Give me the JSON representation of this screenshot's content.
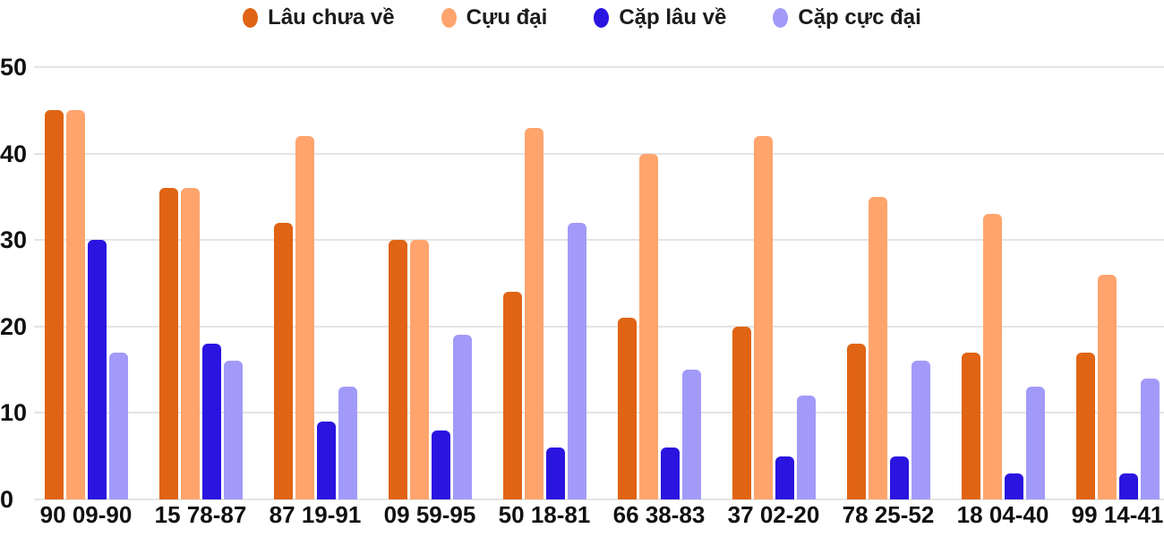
{
  "chart_data": {
    "type": "bar",
    "title": "",
    "xlabel": "",
    "ylabel": "",
    "ylim": [
      0,
      50
    ],
    "yticks": [
      0,
      10,
      20,
      30,
      40,
      50
    ],
    "grid": true,
    "legend_position": "top",
    "background": "#ffffff",
    "grid_color": "#e4e4e4",
    "text_color": "#111111",
    "categories": [
      "90 09-90",
      "15 78-87",
      "87 19-91",
      "09 59-95",
      "50 18-81",
      "66 38-83",
      "37 02-20",
      "78 25-52",
      "18 04-40",
      "99 14-41"
    ],
    "series": [
      {
        "name": "Lâu chưa về",
        "color": "#e06414",
        "values": [
          45,
          36,
          32,
          30,
          24,
          21,
          20,
          18,
          17,
          17
        ]
      },
      {
        "name": "Cựu đại",
        "color": "#ffa46c",
        "values": [
          45,
          36,
          42,
          30,
          43,
          40,
          42,
          35,
          33,
          26
        ]
      },
      {
        "name": "Cặp lâu về",
        "color": "#2a14e0",
        "values": [
          30,
          18,
          9,
          8,
          6,
          6,
          5,
          5,
          3,
          3
        ]
      },
      {
        "name": "Cặp cực đại",
        "color": "#a29af9",
        "values": [
          17,
          16,
          13,
          19,
          32,
          15,
          12,
          16,
          13,
          14
        ]
      }
    ]
  }
}
